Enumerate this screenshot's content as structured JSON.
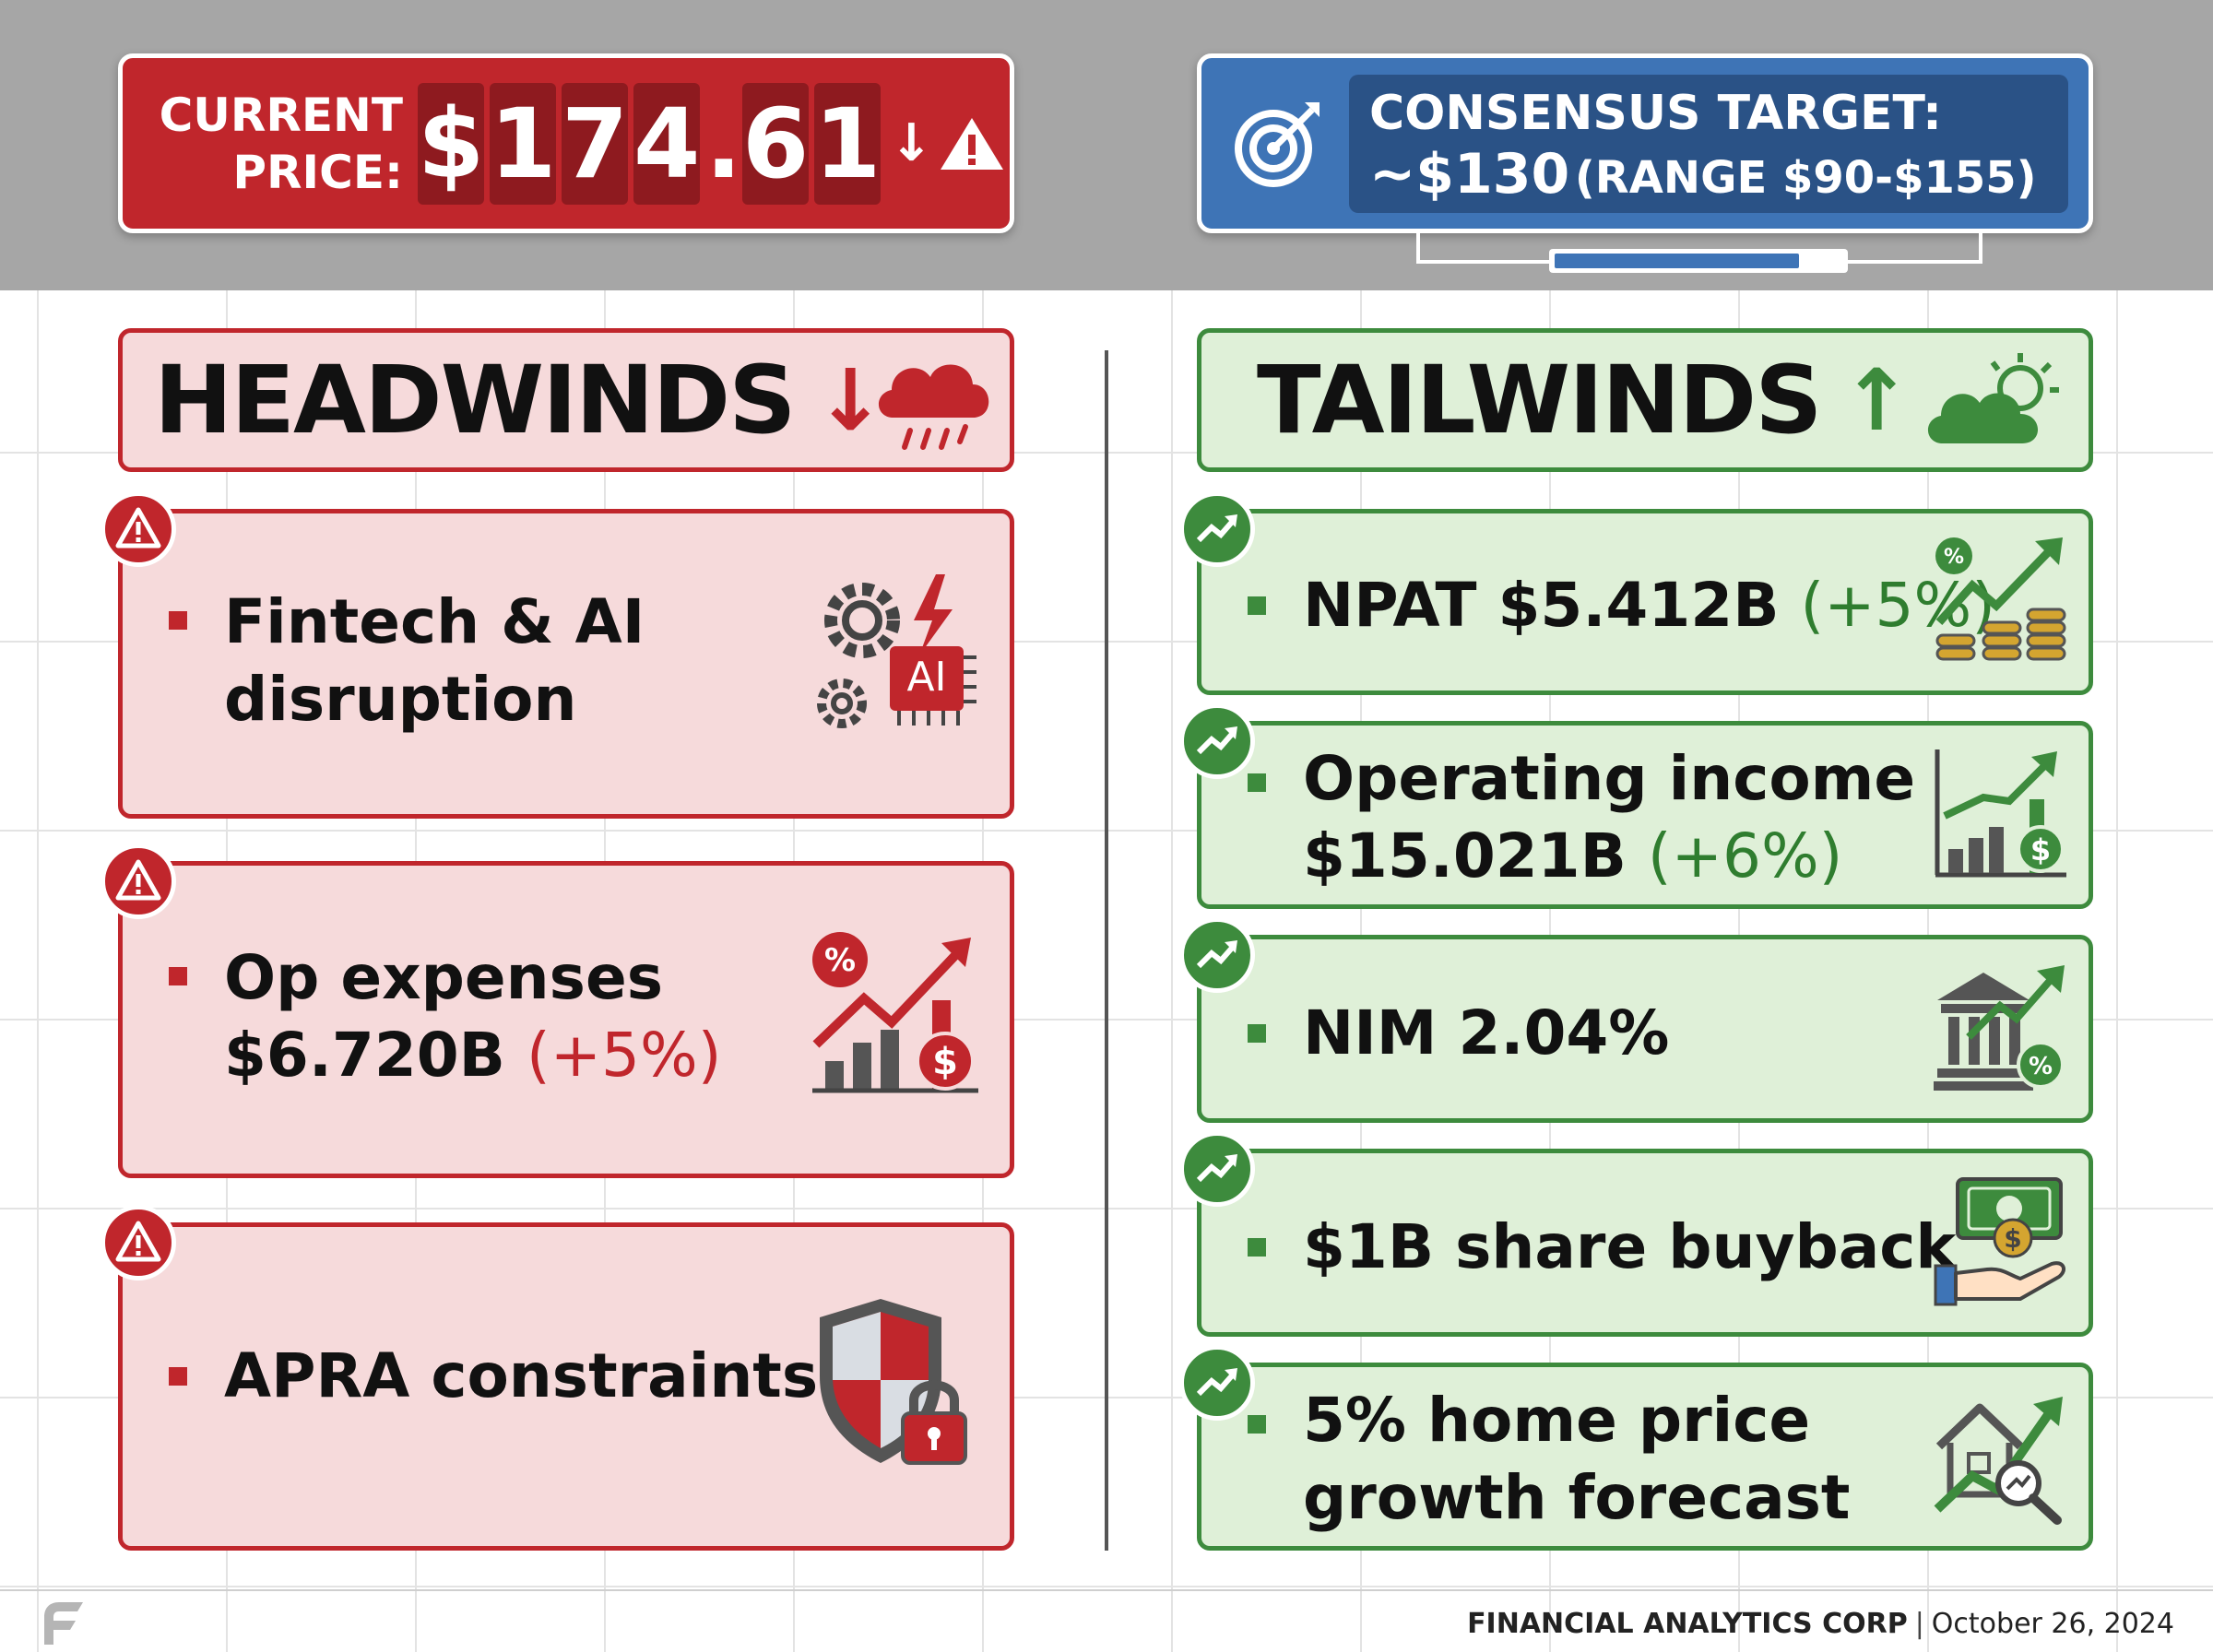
{
  "header": {
    "price_label_line1": "CURRENT",
    "price_label_line2": "PRICE:",
    "price_digits": [
      "$",
      "1",
      "7",
      "4",
      ".",
      "6",
      "1"
    ],
    "price_direction": "↓",
    "target_line1": "CONSENSUS TARGET:",
    "target_value": "~$130",
    "target_range": "(RANGE $90-$155)",
    "target_range_position": 0.85
  },
  "headwinds": {
    "title": "HEADWINDS",
    "arrow": "↓",
    "icon": "rain-cloud-icon",
    "items": [
      {
        "lines": [
          "Fintech & AI",
          "disruption"
        ],
        "change": "",
        "icon": "gears-ai-chip-icon"
      },
      {
        "lines": [
          "Op expenses",
          "$6.720B"
        ],
        "change": "(+5%)",
        "icon": "rising-costs-chart-icon"
      },
      {
        "lines": [
          "APRA constraints"
        ],
        "change": "",
        "icon": "shield-lock-icon"
      }
    ]
  },
  "tailwinds": {
    "title": "TAILWINDS",
    "arrow": "↑",
    "icon": "sun-cloud-icon",
    "items": [
      {
        "lines": [
          "NPAT $5.412B"
        ],
        "change": "(+5%)",
        "icon": "coins-growth-icon"
      },
      {
        "lines": [
          "Operating income",
          "$15.021B"
        ],
        "change": "(+6%)",
        "icon": "bar-chart-dollar-icon"
      },
      {
        "lines": [
          "NIM 2.04%"
        ],
        "change": "",
        "icon": "bank-growth-icon"
      },
      {
        "lines": [
          "$1B share buyback"
        ],
        "change": "",
        "icon": "cash-hand-icon"
      },
      {
        "lines": [
          "5% home price",
          "growth forecast"
        ],
        "change": "",
        "icon": "house-growth-icon"
      }
    ]
  },
  "footer": {
    "company": "FINANCIAL ANALYTICS CORP",
    "separator": "|",
    "date": "October 26, 2024"
  },
  "colors": {
    "headwind_red": "#c0262c",
    "tailwind_green": "#3d8b3d",
    "target_blue": "#3e74b6",
    "band_gray": "#a6a6a6"
  }
}
